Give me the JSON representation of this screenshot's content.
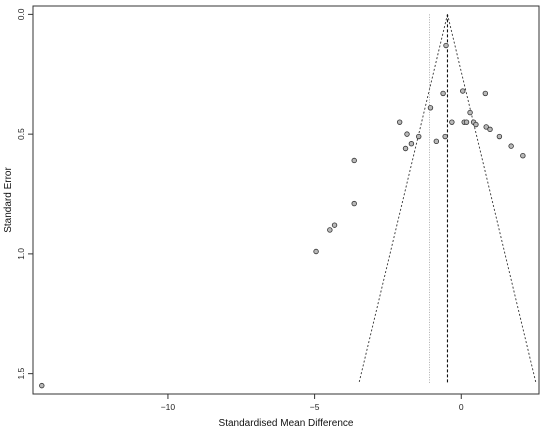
{
  "chart_data": {
    "type": "scatter",
    "title": "",
    "xlabel": "Standardised Mean Difference",
    "ylabel": "Standard Error",
    "xlim": [
      -14.6,
      2.65
    ],
    "ylim": [
      1.585,
      -0.035
    ],
    "y_axis_inverted": true,
    "x_ticks": [
      -10,
      -5,
      0
    ],
    "x_tick_labels": [
      "−10",
      "−5",
      "0"
    ],
    "y_ticks": [
      0.0,
      0.5,
      1.0,
      1.5
    ],
    "y_tick_labels": [
      "0.0",
      "0.5",
      "1.0",
      "1.5"
    ],
    "grid": false,
    "legend": "none",
    "reference_lines": {
      "pooled_estimate": -0.47,
      "dotted_vertical": -1.08,
      "funnel_apex_se": 0.0,
      "funnel_base_se": 1.54,
      "funnel_multiplier": 1.96
    },
    "points": [
      {
        "x": -14.3,
        "y": 1.55
      },
      {
        "x": -4.95,
        "y": 0.99
      },
      {
        "x": -4.48,
        "y": 0.9
      },
      {
        "x": -4.32,
        "y": 0.88
      },
      {
        "x": -3.65,
        "y": 0.79
      },
      {
        "x": -3.65,
        "y": 0.61
      },
      {
        "x": -2.1,
        "y": 0.45
      },
      {
        "x": -1.85,
        "y": 0.5
      },
      {
        "x": -1.9,
        "y": 0.56
      },
      {
        "x": -1.7,
        "y": 0.54
      },
      {
        "x": -1.45,
        "y": 0.51
      },
      {
        "x": -1.05,
        "y": 0.39
      },
      {
        "x": -0.85,
        "y": 0.53
      },
      {
        "x": -0.62,
        "y": 0.33
      },
      {
        "x": -0.55,
        "y": 0.51
      },
      {
        "x": -0.52,
        "y": 0.13
      },
      {
        "x": -0.32,
        "y": 0.45
      },
      {
        "x": 0.05,
        "y": 0.32
      },
      {
        "x": 0.1,
        "y": 0.45
      },
      {
        "x": 0.18,
        "y": 0.45
      },
      {
        "x": 0.3,
        "y": 0.41
      },
      {
        "x": 0.42,
        "y": 0.45
      },
      {
        "x": 0.5,
        "y": 0.46
      },
      {
        "x": 0.82,
        "y": 0.33
      },
      {
        "x": 0.85,
        "y": 0.47
      },
      {
        "x": 0.98,
        "y": 0.48
      },
      {
        "x": 1.3,
        "y": 0.51
      },
      {
        "x": 1.7,
        "y": 0.55
      },
      {
        "x": 2.1,
        "y": 0.59
      }
    ]
  }
}
